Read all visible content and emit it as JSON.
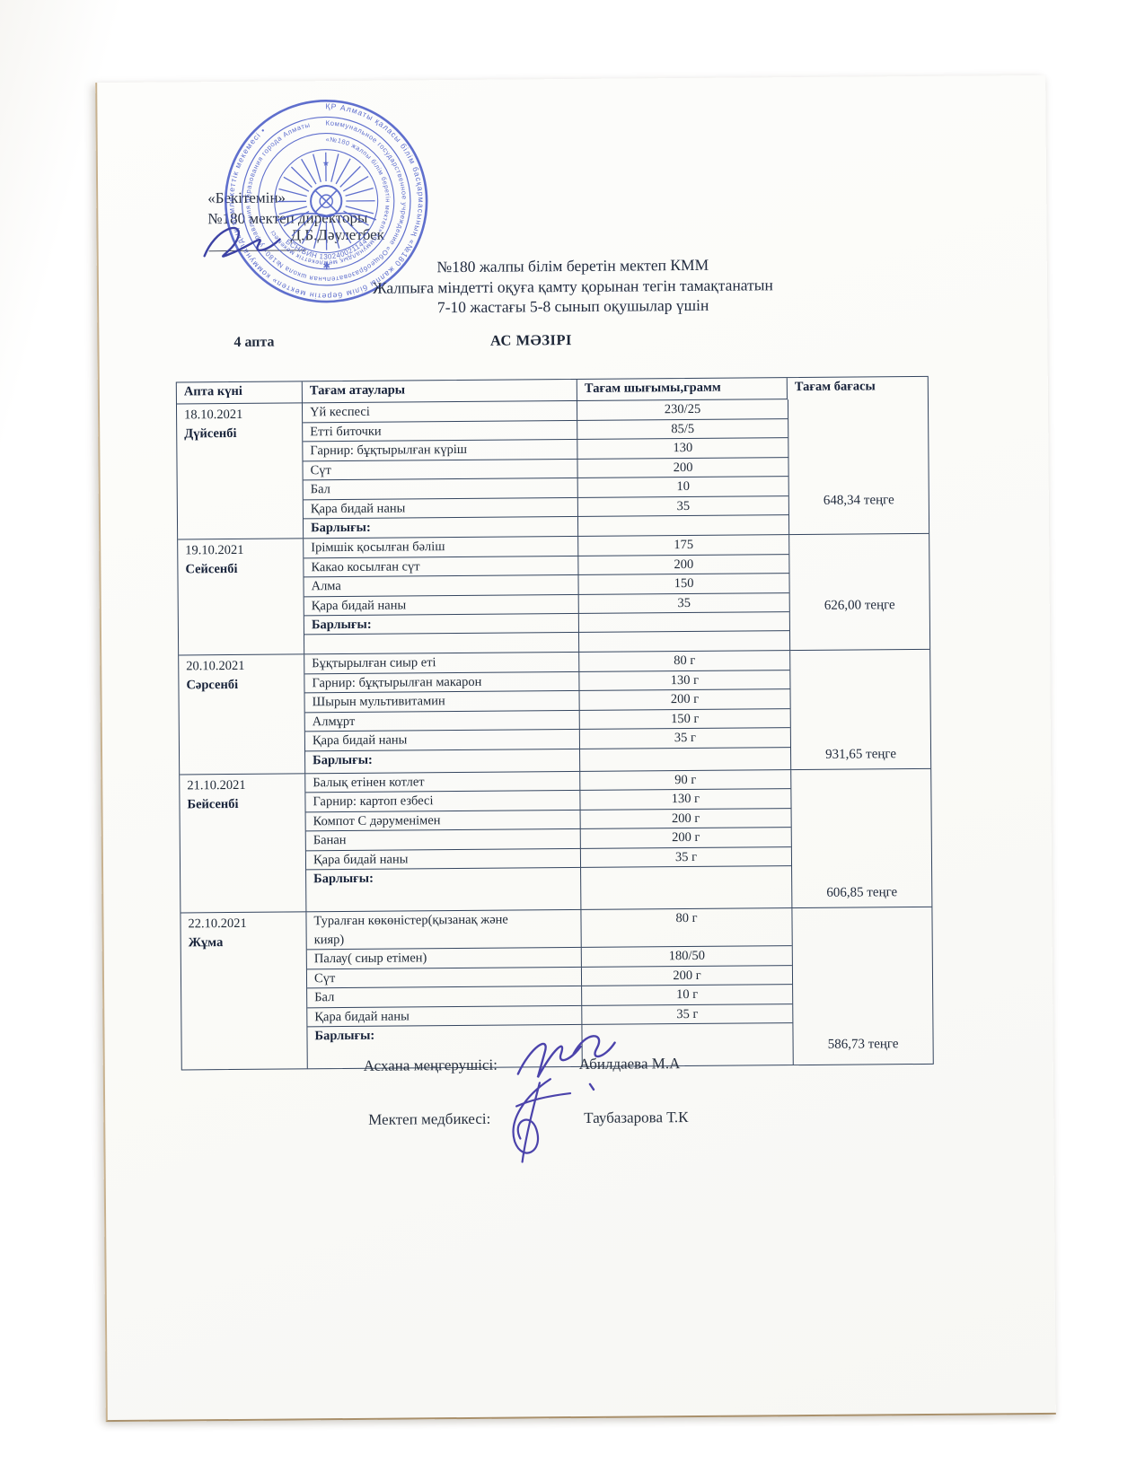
{
  "approval": {
    "line1": "«Бекітемін»",
    "line2": "№180 мектеп директоры",
    "signatory": "Д.Б.Дәулетбек"
  },
  "stamp": {
    "color": "#4a5cc7",
    "ring_outer": "ҚР Алматы қаласы білім басқармасының «№180 жалпы білім беретін мектеп» коммуналдық мемлекеттік мекемесі •",
    "ring_middle": "Коммунальное государственное учреждение «Общеобразовательная школа №180» управления образования города Алматы",
    "ring_inner": "«№180 жалпы білім беретін мектеп» коммуналдық мемлекеттік мекемесі",
    "bin": "БСН/БИН 130240021144"
  },
  "titles": {
    "line1": "№180 жалпы білім беретін мектеп КММ",
    "line2": "Жалпыға міндетті оқуға қамту қорынан тегін тамақтанатын",
    "line3": "7-10 жастағы 5-8 сынып оқушылар үшін"
  },
  "week_label": "4 апта",
  "menu_title": "АС МӘЗІРІ",
  "table": {
    "headers": [
      "Апта күні",
      "Тағам атаулары",
      "Тағам шығымы,грамм",
      "Тағам бағасы"
    ],
    "total_label": "Барлығы:",
    "days": [
      {
        "date": "18.10.2021",
        "day": "Дүйсенбі",
        "dishes": [
          {
            "name": "Үй кеспесі",
            "amount": "230/25"
          },
          {
            "name": "Етті биточки",
            "amount": "85/5"
          },
          {
            "name": "Гарнир: бұқтырылған күріш",
            "amount": "130"
          },
          {
            "name": "Сүт",
            "amount": "200"
          },
          {
            "name": "Бал",
            "amount": "10"
          },
          {
            "name": "Қара бидай наны",
            "amount": "35"
          }
        ],
        "price": "648,34 теңге"
      },
      {
        "date": "19.10.2021",
        "day": "Сейсенбі",
        "dishes": [
          {
            "name": "Ірімшік қосылған бәліш",
            "amount": "175"
          },
          {
            "name": "Какао косылған сүт",
            "amount": "200"
          },
          {
            "name": "Алма",
            "amount": "150"
          },
          {
            "name": "Қара бидай наны",
            "amount": "35"
          }
        ],
        "price": "626,00 теңге",
        "spacer": true
      },
      {
        "date": "20.10.2021",
        "day": "Сәрсенбі",
        "dishes": [
          {
            "name": "Бұқтырылған сиыр еті",
            "amount": "80 г"
          },
          {
            "name": "Гарнир: бұқтырылған макарон",
            "amount": "130 г"
          },
          {
            "name": "Шырын мультивитамин",
            "amount": "200 г"
          },
          {
            "name": "Алмұрт",
            "amount": "150 г"
          },
          {
            "name": "Қара бидай наны",
            "amount": "35 г"
          }
        ],
        "price": "931,65 теңге"
      },
      {
        "date": "21.10.2021",
        "day": "Бейсенбі",
        "dishes": [
          {
            "name": "Балық етінен котлет",
            "amount": "90 г"
          },
          {
            "name": "Гарнир: картоп езбесі",
            "amount": "130 г"
          },
          {
            "name": "Компот С дәруменімен",
            "amount": "200 г"
          },
          {
            "name": "Банан",
            "amount": "200 г"
          },
          {
            "name": "Қара бидай наны",
            "amount": "35 г"
          }
        ],
        "price": "606,85 теңге"
      },
      {
        "date": "22.10.2021",
        "day": "Жұма",
        "dishes": [
          {
            "name": "Туралған көкөністер(қызанақ және\nкияр)",
            "amount": "80 г"
          },
          {
            "name": "Палау( сиыр етімен)",
            "amount": "180/50"
          },
          {
            "name": "Сүт",
            "amount": "200 г"
          },
          {
            "name": "Бал",
            "amount": "10 г"
          },
          {
            "name": "Қара бидай наны",
            "amount": "35 г"
          }
        ],
        "price": "586,73 теңге"
      }
    ]
  },
  "footer": {
    "canteen_label": "Асхана меңгерушісі:",
    "canteen_name": "Абилдаева М.А",
    "nurse_label": "Мектеп медбикесі:",
    "nurse_name": "Таубазарова Т.К"
  }
}
